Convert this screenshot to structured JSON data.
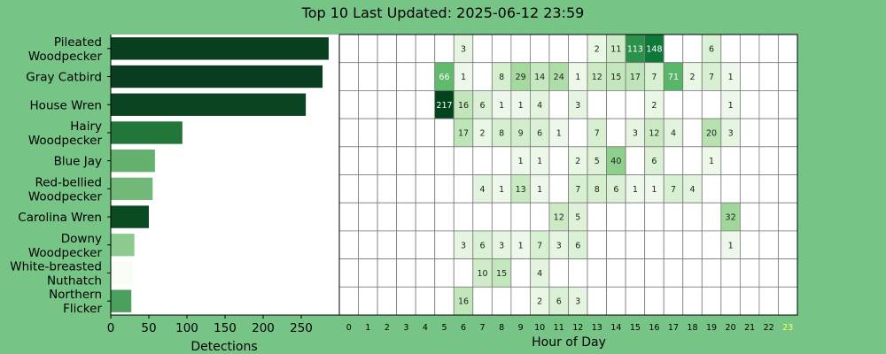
{
  "chart_data": [
    {
      "type": "bar",
      "orientation": "horizontal",
      "title": "Top 10 Last Updated: 2025-06-12 23:59",
      "categories": [
        "Pileated\nWoodpecker",
        "Gray Catbird",
        "House Wren",
        "Hairy\nWoodpecker",
        "Blue Jay",
        "Red-bellied\nWoodpecker",
        "Carolina Wren",
        "Downy\nWoodpecker",
        "White-breasted\nNuthatch",
        "Northern\nFlicker"
      ],
      "values": [
        286,
        278,
        256,
        94,
        58,
        55,
        50,
        31,
        29,
        27
      ],
      "bar_colors": [
        "#083f1f",
        "#0a3d1f",
        "#0b4420",
        "#22763a",
        "#64b06e",
        "#72b878",
        "#0a4a22",
        "#8dca8f",
        "#f7fcf5",
        "#4aa05c"
      ],
      "xlabel": "Detections",
      "xticks": [
        0,
        50,
        100,
        150,
        200,
        250
      ],
      "xlim": [
        0,
        300
      ]
    },
    {
      "type": "heatmap",
      "xlabel": "Hour of Day",
      "x": [
        "0",
        "1",
        "2",
        "3",
        "4",
        "5",
        "6",
        "7",
        "8",
        "9",
        "10",
        "11",
        "12",
        "13",
        "14",
        "15",
        "16",
        "17",
        "18",
        "19",
        "20",
        "21",
        "22",
        "23"
      ],
      "highlight_hour": 23,
      "highlight_color": "#ffff66",
      "colormap": "greens",
      "rows": [
        {
          "label": "Pileated Woodpecker",
          "values": [
            0,
            0,
            0,
            0,
            0,
            0,
            3,
            0,
            0,
            0,
            0,
            0,
            0,
            2,
            11,
            113,
            148,
            0,
            0,
            6,
            0,
            0,
            0,
            0
          ]
        },
        {
          "label": "Gray Catbird",
          "values": [
            0,
            0,
            0,
            0,
            0,
            66,
            1,
            0,
            8,
            29,
            14,
            24,
            1,
            12,
            15,
            17,
            7,
            71,
            2,
            7,
            1,
            0,
            0,
            0
          ]
        },
        {
          "label": "House Wren",
          "values": [
            0,
            0,
            0,
            0,
            0,
            217,
            16,
            6,
            1,
            1,
            4,
            0,
            3,
            0,
            0,
            0,
            2,
            0,
            0,
            0,
            1,
            0,
            0,
            0
          ]
        },
        {
          "label": "Hairy Woodpecker",
          "values": [
            0,
            0,
            0,
            0,
            0,
            0,
            17,
            2,
            8,
            9,
            6,
            1,
            0,
            7,
            0,
            3,
            12,
            4,
            0,
            20,
            3,
            0,
            0,
            0
          ]
        },
        {
          "label": "Blue Jay",
          "values": [
            0,
            0,
            0,
            0,
            0,
            0,
            0,
            0,
            0,
            1,
            1,
            0,
            2,
            5,
            40,
            0,
            6,
            0,
            0,
            1,
            0,
            0,
            0,
            0
          ]
        },
        {
          "label": "Red-bellied Woodpecker",
          "values": [
            0,
            0,
            0,
            0,
            0,
            0,
            0,
            4,
            1,
            13,
            1,
            0,
            7,
            8,
            6,
            1,
            1,
            7,
            4,
            0,
            0,
            0,
            0,
            0
          ]
        },
        {
          "label": "Carolina Wren",
          "values": [
            0,
            0,
            0,
            0,
            0,
            0,
            0,
            0,
            0,
            0,
            0,
            12,
            5,
            0,
            0,
            0,
            0,
            0,
            0,
            0,
            32,
            0,
            0,
            0
          ]
        },
        {
          "label": "Downy Woodpecker",
          "values": [
            0,
            0,
            0,
            0,
            0,
            0,
            3,
            6,
            3,
            1,
            7,
            3,
            6,
            0,
            0,
            0,
            0,
            0,
            0,
            0,
            1,
            0,
            0,
            0
          ]
        },
        {
          "label": "White-breasted Nuthatch",
          "values": [
            0,
            0,
            0,
            0,
            0,
            0,
            0,
            10,
            15,
            0,
            4,
            0,
            0,
            0,
            0,
            0,
            0,
            0,
            0,
            0,
            0,
            0,
            0,
            0
          ]
        },
        {
          "label": "Northern Flicker",
          "values": [
            0,
            0,
            0,
            0,
            0,
            0,
            16,
            0,
            0,
            0,
            2,
            6,
            3,
            0,
            0,
            0,
            0,
            0,
            0,
            0,
            0,
            0,
            0,
            0
          ]
        }
      ]
    }
  ]
}
